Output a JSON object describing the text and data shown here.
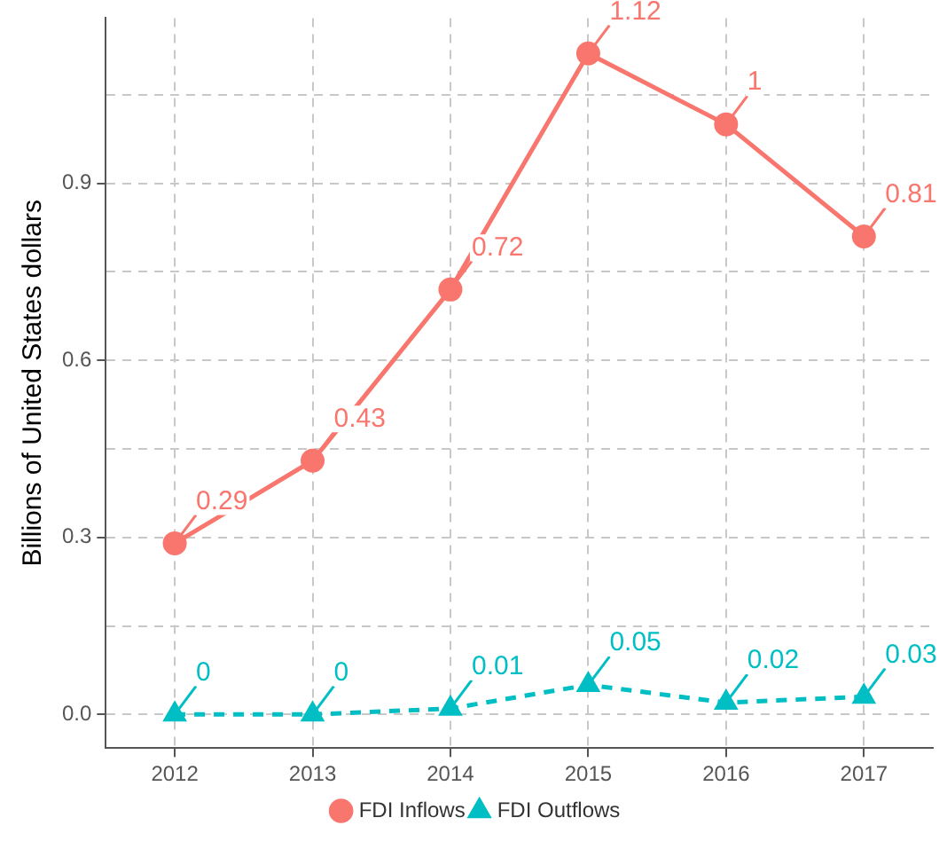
{
  "chart_data": {
    "type": "line",
    "ylabel": "Billions of United States dollars",
    "categories": [
      "2012",
      "2013",
      "2014",
      "2015",
      "2016",
      "2017"
    ],
    "series": [
      {
        "name": "FDI Inflows",
        "color": "#f8766d",
        "values": [
          0.29,
          0.43,
          0.72,
          1.12,
          1,
          0.81
        ],
        "marker": "circle",
        "line_style": "solid"
      },
      {
        "name": "FDI Outflows",
        "color": "#00bfc4",
        "values": [
          0,
          0,
          0.01,
          0.05,
          0.02,
          0.03
        ],
        "marker": "triangle",
        "line_style": "dashed"
      }
    ],
    "ylim": [
      -0.057,
      1.18
    ],
    "yticks": [
      {
        "value": 0,
        "label": "0.0"
      },
      {
        "value": 0.15,
        "label": null
      },
      {
        "value": 0.3,
        "label": "0.3"
      },
      {
        "value": 0.45,
        "label": null
      },
      {
        "value": 0.6,
        "label": "0.6"
      },
      {
        "value": 0.75,
        "label": null
      },
      {
        "value": 0.9,
        "label": "0.9"
      },
      {
        "value": 1.05,
        "label": null
      }
    ],
    "grid": true,
    "legend": "bottom",
    "data_labels": true
  }
}
